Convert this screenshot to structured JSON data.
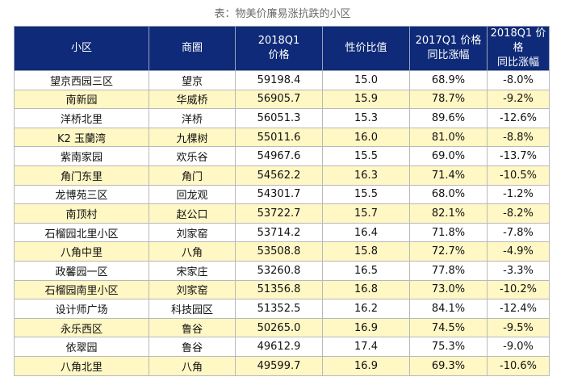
{
  "caption": "表：物美价廉易涨抗跌的小区",
  "headers": [
    "小区",
    "商圈",
    "2018Q1\n价格",
    "性价比值",
    "2017Q1 价格\n同比涨幅",
    "2018Q1 价格\n同比涨幅"
  ],
  "rows": [
    [
      "望京西园三区",
      "望京",
      "59198.4",
      "15.0",
      "68.9%",
      "-8.0%"
    ],
    [
      "南新园",
      "华威桥",
      "56905.7",
      "15.9",
      "78.7%",
      "-9.2%"
    ],
    [
      "洋桥北里",
      "洋桥",
      "56051.3",
      "15.3",
      "89.6%",
      "-12.6%"
    ],
    [
      "K2 玉蘭湾",
      "九棵树",
      "55011.6",
      "16.0",
      "81.0%",
      "-8.8%"
    ],
    [
      "紫南家园",
      "欢乐谷",
      "54967.6",
      "15.5",
      "69.0%",
      "-13.7%"
    ],
    [
      "角门东里",
      "角门",
      "54562.2",
      "16.3",
      "71.4%",
      "-10.5%"
    ],
    [
      "龙博苑三区",
      "回龙观",
      "54301.7",
      "15.5",
      "68.0%",
      "-1.2%"
    ],
    [
      "南顶村",
      "赵公口",
      "53722.7",
      "15.7",
      "82.1%",
      "-8.2%"
    ],
    [
      "石榴园北里小区",
      "刘家窑",
      "53714.2",
      "16.4",
      "71.8%",
      "-7.8%"
    ],
    [
      "八角中里",
      "八角",
      "53508.8",
      "15.8",
      "72.7%",
      "-4.9%"
    ],
    [
      "政馨园一区",
      "宋家庄",
      "53260.8",
      "16.5",
      "77.8%",
      "-3.3%"
    ],
    [
      "石榴园南里小区",
      "刘家窑",
      "51356.8",
      "16.8",
      "73.0%",
      "-10.2%"
    ],
    [
      "设计师广场",
      "科技园区",
      "51352.5",
      "16.2",
      "84.1%",
      "-12.4%"
    ],
    [
      "永乐西区",
      "鲁谷",
      "50265.0",
      "16.9",
      "74.5%",
      "-9.5%"
    ],
    [
      "依翠园",
      "鲁谷",
      "49612.9",
      "17.4",
      "75.3%",
      "-9.0%"
    ],
    [
      "八角北里",
      "八角",
      "49599.7",
      "16.9",
      "69.3%",
      "-10.6%"
    ]
  ],
  "colors": {
    "header_bg": "#0e2a78",
    "alt_row_bg": "#fff7c4"
  }
}
